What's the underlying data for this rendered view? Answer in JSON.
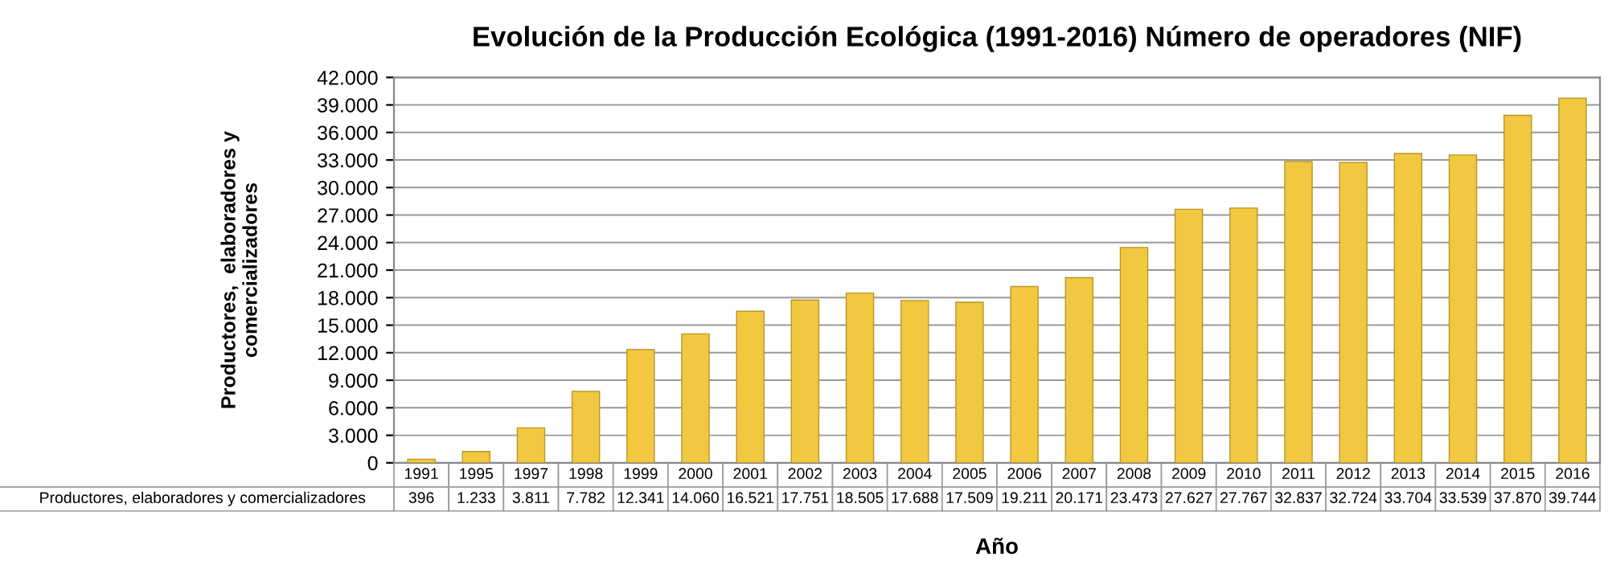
{
  "chart_data": {
    "type": "bar",
    "title": "Evolución de la Producción Ecológica (1991-2016) Número de operadores (NIF)",
    "xlabel": "Año",
    "ylabel": "Productores,  elaboradores y\ncomercializadores",
    "categories": [
      "1991",
      "1995",
      "1997",
      "1998",
      "1999",
      "2000",
      "2001",
      "2002",
      "2003",
      "2004",
      "2005",
      "2006",
      "2007",
      "2008",
      "2009",
      "2010",
      "2011",
      "2012",
      "2013",
      "2014",
      "2015",
      "2016"
    ],
    "series": [
      {
        "name": "Productores, elaboradores y comercializadores",
        "color": "#f2c840",
        "values": [
          396,
          1233,
          3811,
          7782,
          12341,
          14060,
          16521,
          17751,
          18505,
          17688,
          17509,
          19211,
          20171,
          23473,
          27627,
          27767,
          32837,
          32724,
          33704,
          33539,
          37870,
          39744
        ],
        "value_labels": [
          "396",
          "1.233",
          "3.811",
          "7.782",
          "12.341",
          "14.060",
          "16.521",
          "17.751",
          "18.505",
          "17.688",
          "17.509",
          "19.211",
          "20.171",
          "23.473",
          "27.627",
          "27.767",
          "32.837",
          "32.724",
          "33.704",
          "33.539",
          "37.870",
          "39.744"
        ]
      }
    ],
    "ylim": [
      0,
      42000
    ],
    "yticks": [
      0,
      {
        "value": 3000,
        "label": "3.000"
      },
      {
        "value": 6000,
        "label": "6.000"
      },
      {
        "value": 9000,
        "label": "9.000"
      },
      {
        "value": 12000,
        "label": "12.000"
      },
      {
        "value": 15000,
        "label": "15.000"
      },
      {
        "value": 18000,
        "label": "18.000"
      },
      {
        "value": 21000,
        "label": "21.000"
      },
      {
        "value": 24000,
        "label": "24.000"
      },
      {
        "value": 27000,
        "label": "27.000"
      },
      {
        "value": 30000,
        "label": "30.000"
      },
      {
        "value": 33000,
        "label": "33.000"
      },
      {
        "value": 36000,
        "label": "36.000"
      },
      {
        "value": 39000,
        "label": "39.000"
      },
      {
        "value": 42000,
        "label": "42.000"
      }
    ],
    "grid": "y"
  }
}
